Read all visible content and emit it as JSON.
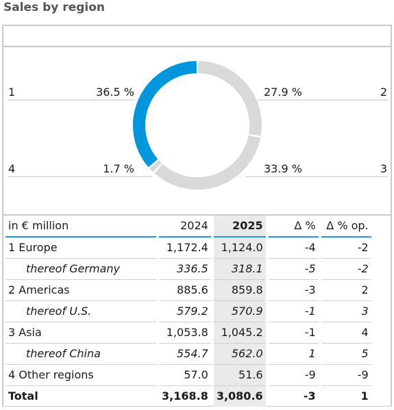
{
  "page_title": "Sales by region",
  "chart_data": {
    "type": "pie",
    "style": "donut",
    "slices": [
      {
        "id": "1",
        "label": "1",
        "value": 36.5,
        "value_label": "36.5 %",
        "color": "#0096dc"
      },
      {
        "id": "2",
        "label": "2",
        "value": 27.9,
        "value_label": "27.9 %",
        "color": "#d9d9d9"
      },
      {
        "id": "3",
        "label": "3",
        "value": 33.9,
        "value_label": "33.9 %",
        "color": "#d9d9d9"
      },
      {
        "id": "4",
        "label": "4",
        "value": 1.7,
        "value_label": "1.7 %",
        "color": "#d9d9d9"
      }
    ]
  },
  "table": {
    "header": [
      "in € million",
      "2024",
      "2025",
      "Δ %",
      "Δ % op."
    ],
    "rows": [
      {
        "kind": "main",
        "cells": [
          "1 Europe",
          "1,172.4",
          "1,124.0",
          "-4",
          "-2"
        ]
      },
      {
        "kind": "sub",
        "cells": [
          "thereof Germany",
          "336.5",
          "318.1",
          "-5",
          "-2"
        ]
      },
      {
        "kind": "main",
        "cells": [
          "2 Americas",
          "885.6",
          "859.8",
          "-3",
          "2"
        ]
      },
      {
        "kind": "sub",
        "cells": [
          "thereof U.S.",
          "579.2",
          "570.9",
          "-1",
          "3"
        ]
      },
      {
        "kind": "main",
        "cells": [
          "3 Asia",
          "1,053.8",
          "1,045.2",
          "-1",
          "4"
        ]
      },
      {
        "kind": "sub",
        "cells": [
          "thereof China",
          "554.7",
          "562.0",
          "1",
          "5"
        ]
      },
      {
        "kind": "main",
        "cells": [
          "4 Other regions",
          "57.0",
          "51.6",
          "-9",
          "-9"
        ]
      },
      {
        "kind": "total",
        "cells": [
          "Total",
          "3,168.8",
          "3,080.6",
          "-3",
          "1"
        ]
      }
    ]
  },
  "colors": {
    "accent": "#0096dc",
    "neutral": "#d9d9d9",
    "rule": "#1a9be2",
    "highlight_column": "#eaeaea"
  }
}
